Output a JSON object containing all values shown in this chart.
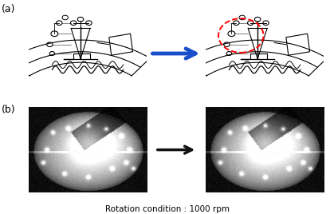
{
  "fig_width": 4.19,
  "fig_height": 2.68,
  "dpi": 100,
  "label_a": "(a)",
  "label_b": "(b)",
  "caption": "Rotation condition : 1000 rpm",
  "caption_fontsize": 7.5,
  "label_fontsize": 9,
  "blue_arrow_color": "#1a4fcc",
  "black_arrow_color": "#111111",
  "red_circle_color": "#dd2222",
  "bg_color": "#ffffff"
}
